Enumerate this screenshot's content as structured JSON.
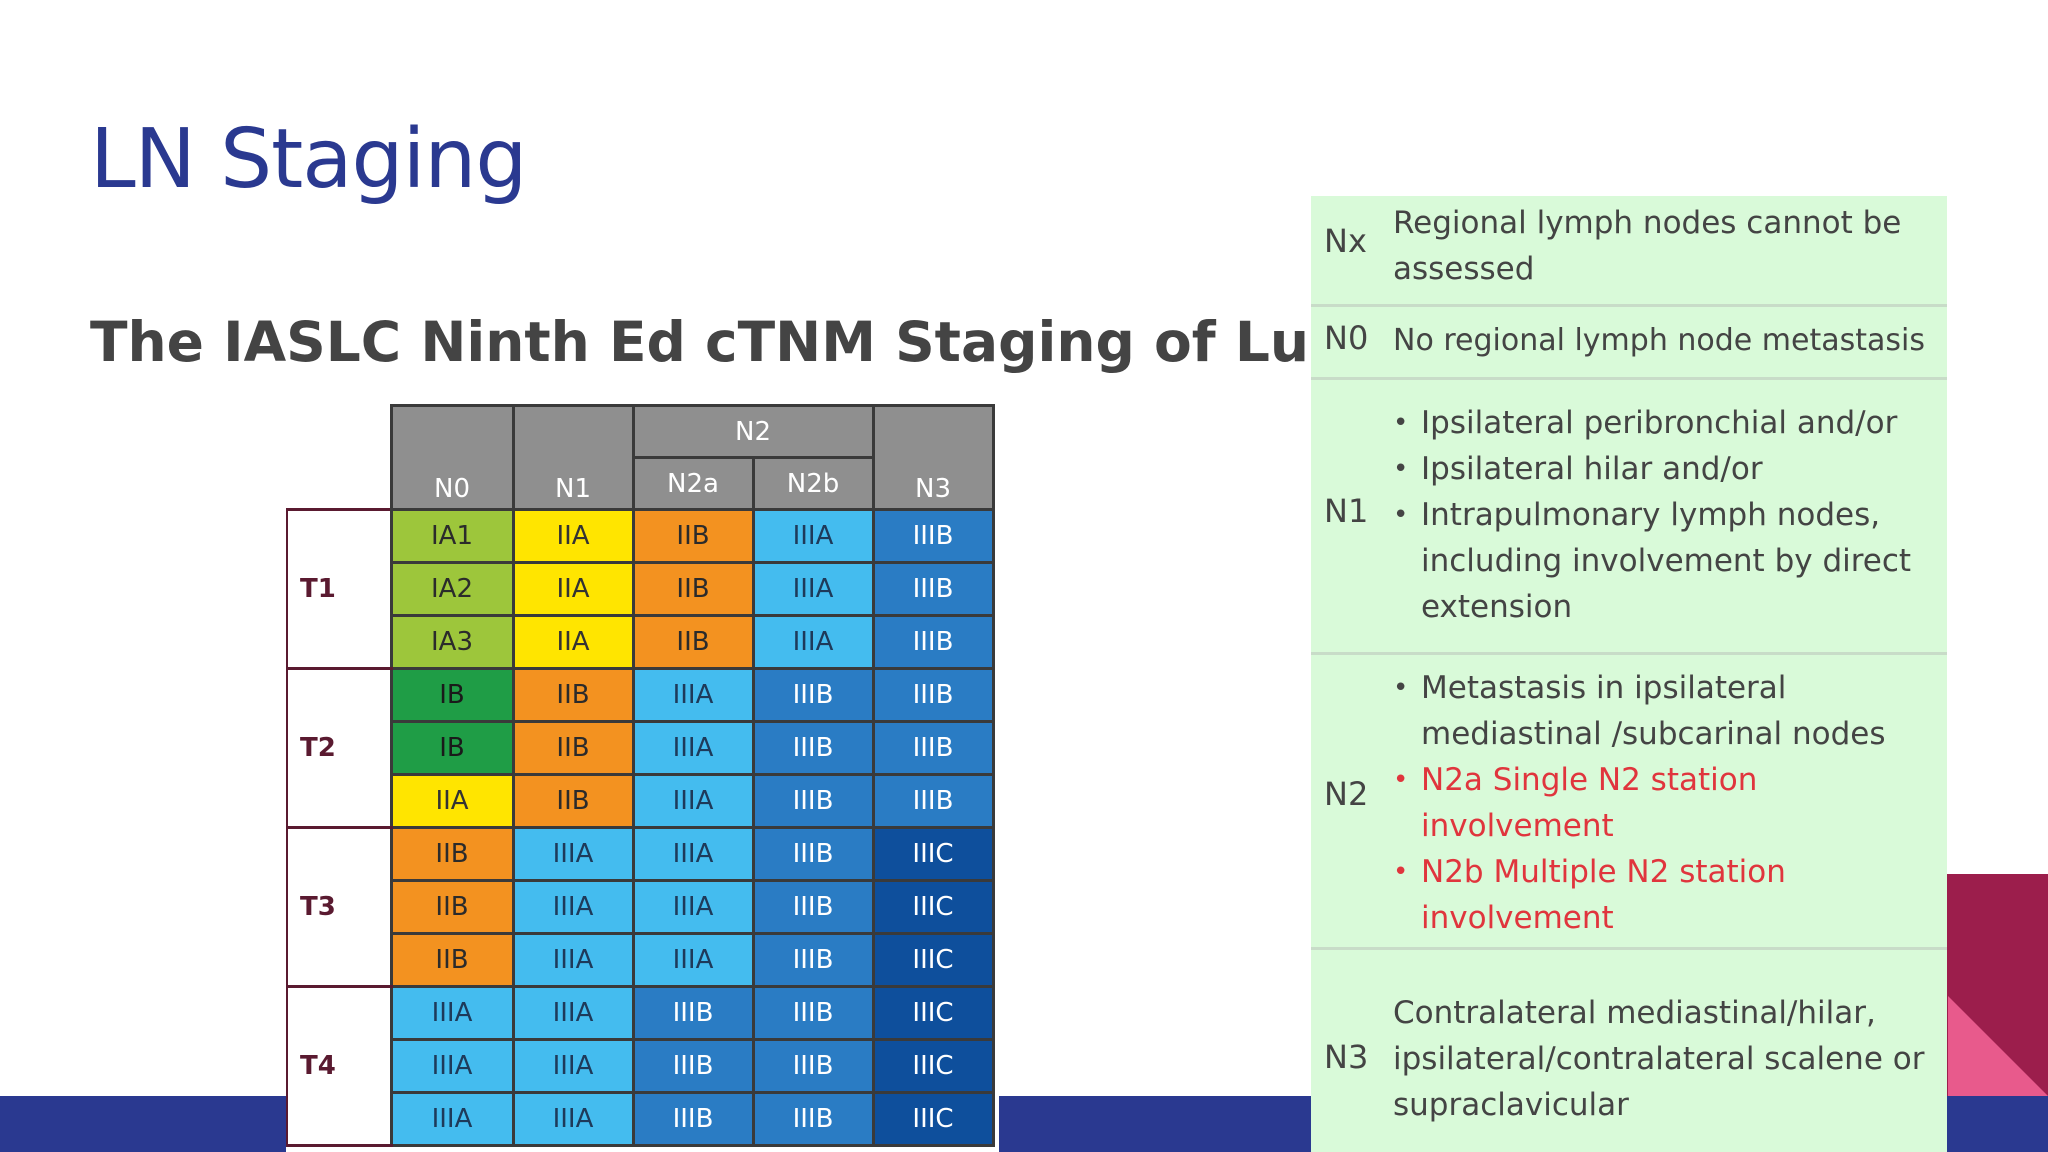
{
  "slide": {
    "title": "LN Staging",
    "subtitle": "The IASLC Ninth  Ed cTNM Staging of Lung cancer"
  },
  "staging_table": {
    "group_header": "N2",
    "columns": [
      "N0",
      "N1",
      "N2a",
      "N2b",
      "N3"
    ],
    "t_groups": [
      {
        "label": "T1",
        "rows": [
          [
            {
              "v": "IA1",
              "c": "lg"
            },
            {
              "v": "IIA",
              "c": "y"
            },
            {
              "v": "IIB",
              "c": "o"
            },
            {
              "v": "IIIA",
              "c": "lb"
            },
            {
              "v": "IIIB",
              "c": "mb"
            }
          ],
          [
            {
              "v": "IA2",
              "c": "lg"
            },
            {
              "v": "IIA",
              "c": "y"
            },
            {
              "v": "IIB",
              "c": "o"
            },
            {
              "v": "IIIA",
              "c": "lb"
            },
            {
              "v": "IIIB",
              "c": "mb"
            }
          ],
          [
            {
              "v": "IA3",
              "c": "lg"
            },
            {
              "v": "IIA",
              "c": "y"
            },
            {
              "v": "IIB",
              "c": "o"
            },
            {
              "v": "IIIA",
              "c": "lb"
            },
            {
              "v": "IIIB",
              "c": "mb"
            }
          ]
        ]
      },
      {
        "label": "T2",
        "rows": [
          [
            {
              "v": "IB",
              "c": "g"
            },
            {
              "v": "IIB",
              "c": "o"
            },
            {
              "v": "IIIA",
              "c": "lb"
            },
            {
              "v": "IIIB",
              "c": "mb"
            },
            {
              "v": "IIIB",
              "c": "mb"
            }
          ],
          [
            {
              "v": "IB",
              "c": "g"
            },
            {
              "v": "IIB",
              "c": "o"
            },
            {
              "v": "IIIA",
              "c": "lb"
            },
            {
              "v": "IIIB",
              "c": "mb"
            },
            {
              "v": "IIIB",
              "c": "mb"
            }
          ],
          [
            {
              "v": "IIA",
              "c": "y"
            },
            {
              "v": "IIB",
              "c": "o"
            },
            {
              "v": "IIIA",
              "c": "lb"
            },
            {
              "v": "IIIB",
              "c": "mb"
            },
            {
              "v": "IIIB",
              "c": "mb"
            }
          ]
        ]
      },
      {
        "label": "T3",
        "rows": [
          [
            {
              "v": "IIB",
              "c": "o"
            },
            {
              "v": "IIIA",
              "c": "lb"
            },
            {
              "v": "IIIA",
              "c": "lb"
            },
            {
              "v": "IIIB",
              "c": "mb"
            },
            {
              "v": "IIIC",
              "c": "db"
            }
          ],
          [
            {
              "v": "IIB",
              "c": "o"
            },
            {
              "v": "IIIA",
              "c": "lb"
            },
            {
              "v": "IIIA",
              "c": "lb"
            },
            {
              "v": "IIIB",
              "c": "mb"
            },
            {
              "v": "IIIC",
              "c": "db"
            }
          ],
          [
            {
              "v": "IIB",
              "c": "o"
            },
            {
              "v": "IIIA",
              "c": "lb"
            },
            {
              "v": "IIIA",
              "c": "lb"
            },
            {
              "v": "IIIB",
              "c": "mb"
            },
            {
              "v": "IIIC",
              "c": "db"
            }
          ]
        ]
      },
      {
        "label": "T4",
        "rows": [
          [
            {
              "v": "IIIA",
              "c": "lb"
            },
            {
              "v": "IIIA",
              "c": "lb"
            },
            {
              "v": "IIIB",
              "c": "mb"
            },
            {
              "v": "IIIB",
              "c": "mb"
            },
            {
              "v": "IIIC",
              "c": "db"
            }
          ],
          [
            {
              "v": "IIIA",
              "c": "lb"
            },
            {
              "v": "IIIA",
              "c": "lb"
            },
            {
              "v": "IIIB",
              "c": "mb"
            },
            {
              "v": "IIIB",
              "c": "mb"
            },
            {
              "v": "IIIC",
              "c": "db"
            }
          ],
          [
            {
              "v": "IIIA",
              "c": "lb"
            },
            {
              "v": "IIIA",
              "c": "lb"
            },
            {
              "v": "IIIB",
              "c": "mb"
            },
            {
              "v": "IIIB",
              "c": "mb"
            },
            {
              "v": "IIIC",
              "c": "db"
            }
          ]
        ]
      }
    ]
  },
  "n_legend": {
    "nx": {
      "code": "Nx",
      "text": "Regional lymph nodes cannot be assessed"
    },
    "n0": {
      "code": "N0",
      "text": "No regional lymph node metastasis"
    },
    "n1": {
      "code": "N1",
      "items": [
        "Ipsilateral peribronchial and/or",
        "Ipsilateral hilar and/or",
        "Intrapulmonary lymph nodes, including involvement by direct extension"
      ]
    },
    "n2": {
      "code": "N2",
      "items": [
        "Metastasis in ipsilateral mediastinal /subcarinal nodes",
        "N2a  Single N2 station involvement",
        "N2b  Multiple N2 station involvement"
      ]
    },
    "n3": {
      "code": "N3",
      "text": "Contralateral mediastinal/hilar, ipsilateral/contralateral scalene or supraclavicular"
    }
  },
  "colors": {
    "title": "#2a3990",
    "footer": "#2a3990",
    "accent_dark": "#9c1e4c",
    "accent_pink": "#e85a8c",
    "legend_bg": "#d9fad9",
    "legend_red": "#e0353d"
  }
}
